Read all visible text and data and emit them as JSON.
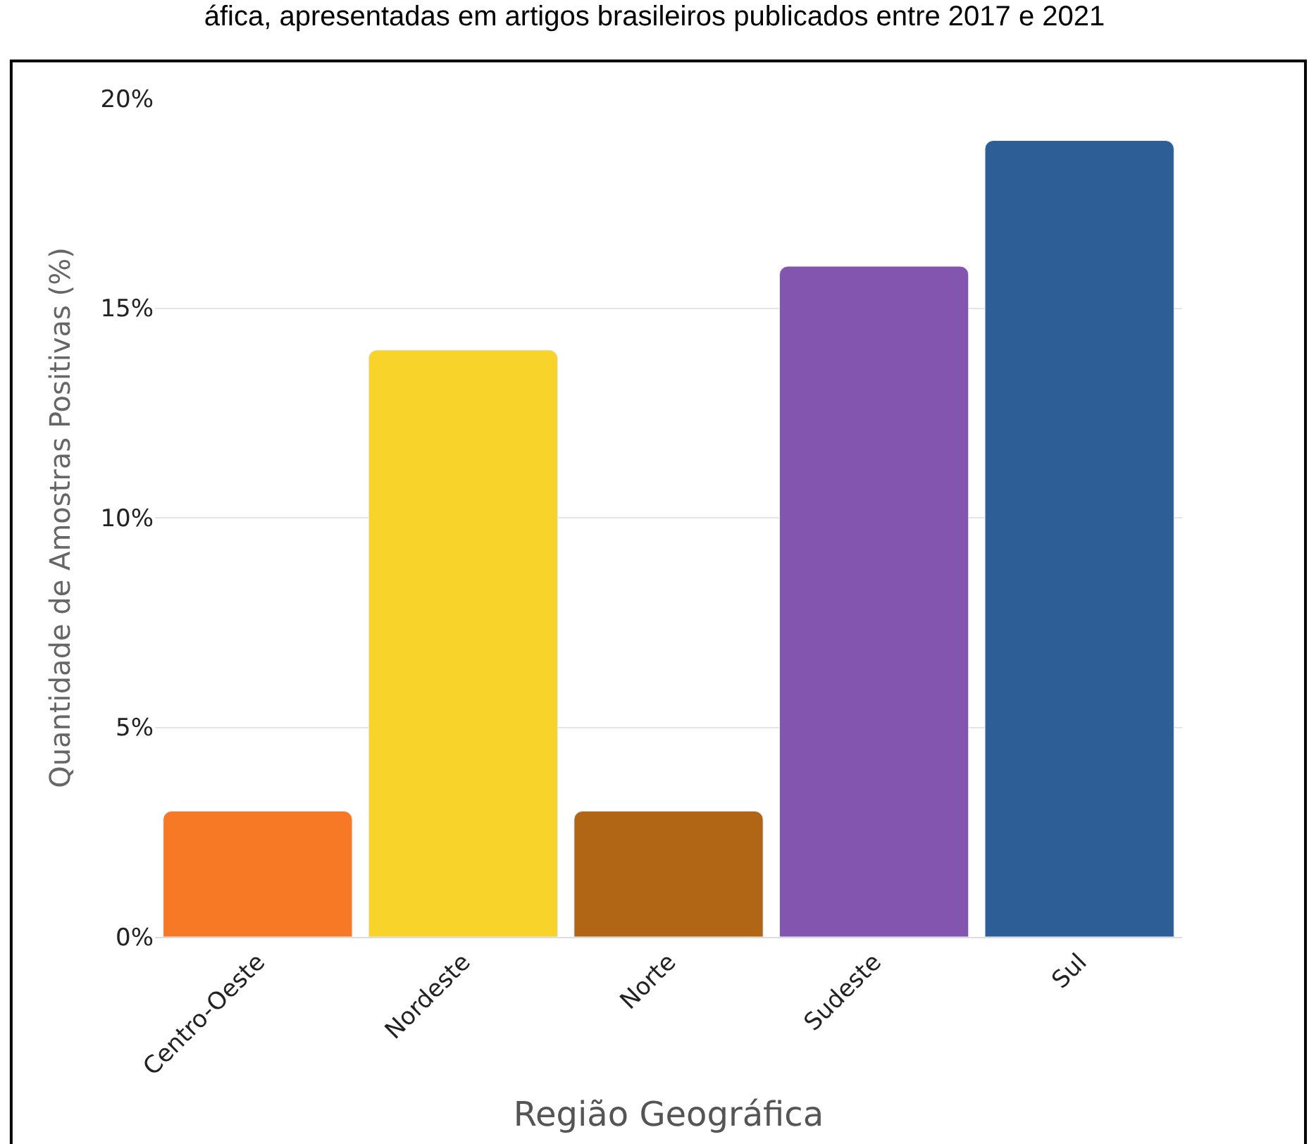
{
  "chart_data": {
    "type": "bar",
    "title": "áfica, apresentadas em artigos brasileiros publicados entre 2017 e 2021",
    "xlabel": "Região Geográfica",
    "ylabel": "Quantidade de Amostras Positivas (%)",
    "categories": [
      "Centro-Oeste",
      "Nordeste",
      "Norte",
      "Sudeste",
      "Sul"
    ],
    "values": [
      3,
      14,
      3,
      16,
      19
    ],
    "colors": [
      "#f77825",
      "#f8d32a",
      "#b06614",
      "#8455ae",
      "#2e5e96"
    ],
    "ylim": [
      0,
      20
    ],
    "yticks": [
      {
        "value": 0,
        "label": "0%"
      },
      {
        "value": 5,
        "label": "5%"
      },
      {
        "value": 10,
        "label": "10%"
      },
      {
        "value": 15,
        "label": "15%"
      },
      {
        "value": 20,
        "label": "20%"
      }
    ],
    "grid": "y"
  }
}
